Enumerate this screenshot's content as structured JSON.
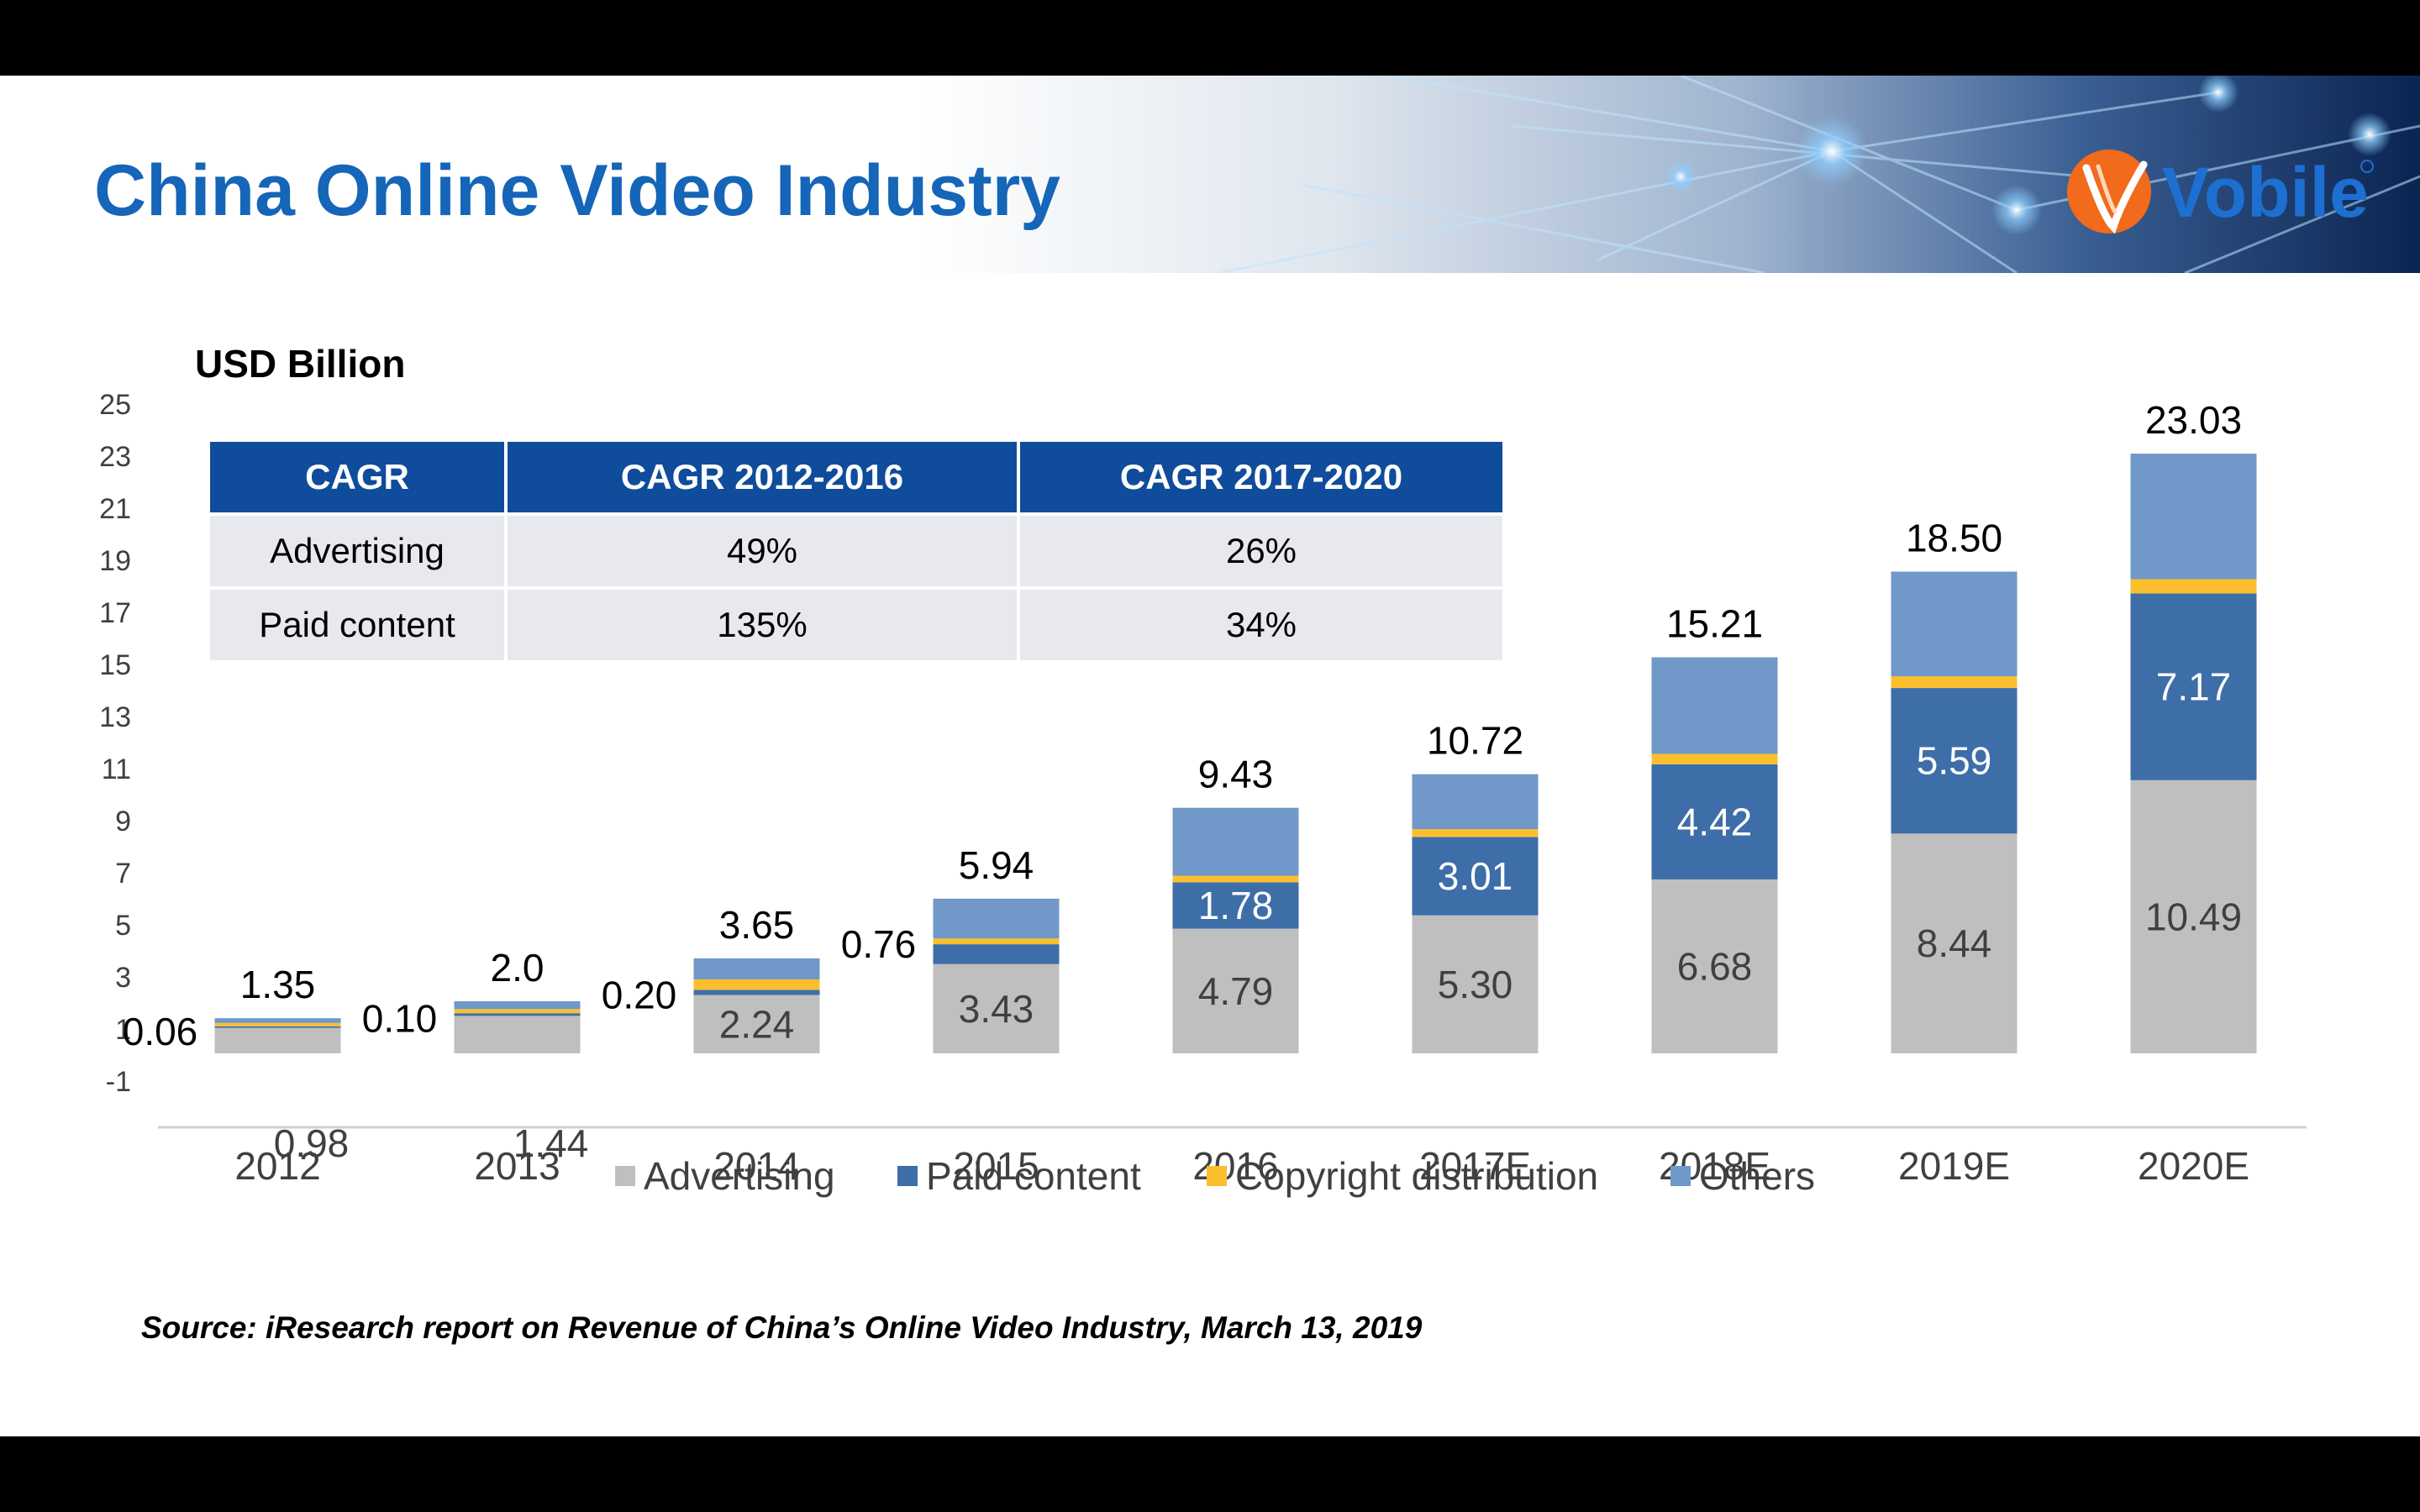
{
  "slide": {
    "title": "China Online Video Industry",
    "logo_text": "Vobile",
    "source": "Source: iResearch report on Revenue of China’s Online Video Industry, March 13, 2019"
  },
  "cagr_table": {
    "headers": [
      "CAGR",
      "CAGR 2012-2016",
      "CAGR 2017-2020"
    ],
    "rows": [
      [
        "Advertising",
        "49%",
        "26%"
      ],
      [
        "Paid content",
        "135%",
        "34%"
      ]
    ]
  },
  "chart_data": {
    "type": "bar",
    "stacked": true,
    "ylabel": "USD Billion",
    "ylim": [
      -1,
      25
    ],
    "yticks": [
      -1,
      1,
      3,
      5,
      7,
      9,
      11,
      13,
      15,
      17,
      19,
      21,
      23,
      25
    ],
    "categories": [
      "2012",
      "2013",
      "2014",
      "2015",
      "2016",
      "2017E",
      "2018E",
      "2019E",
      "2020E"
    ],
    "series": [
      {
        "name": "Advertising",
        "color": "#bfbfbf",
        "values": [
          0.98,
          1.44,
          2.24,
          3.43,
          4.79,
          5.3,
          6.68,
          8.44,
          10.49
        ]
      },
      {
        "name": "Paid content",
        "color": "#3e6ea8",
        "values": [
          0.06,
          0.1,
          0.2,
          0.76,
          1.78,
          3.01,
          4.42,
          5.59,
          7.17
        ]
      },
      {
        "name": "Copyright distribution",
        "color": "#fbbf2e",
        "values": [
          0.13,
          0.16,
          0.4,
          0.22,
          0.25,
          0.3,
          0.4,
          0.45,
          0.55
        ]
      },
      {
        "name": "Others",
        "color": "#7098c8",
        "values": [
          0.18,
          0.3,
          0.81,
          1.53,
          2.61,
          2.11,
          3.71,
          4.02,
          4.82
        ]
      }
    ],
    "totals": [
      "1.35",
      "2.0",
      "3.65",
      "5.94",
      "9.43",
      "10.72",
      "15.21",
      "18.50",
      "23.03"
    ],
    "segment_labels": {
      "Advertising": [
        "0.98",
        "1.44",
        "2.24",
        "3.43",
        "4.79",
        "5.30",
        "6.68",
        "8.44",
        "10.49"
      ],
      "Paid content": [
        "0.06",
        "0.10",
        "0.20",
        "0.76",
        "1.78",
        "3.01",
        "4.42",
        "5.59",
        "7.17"
      ]
    },
    "legend": "bottom",
    "grid": false
  }
}
